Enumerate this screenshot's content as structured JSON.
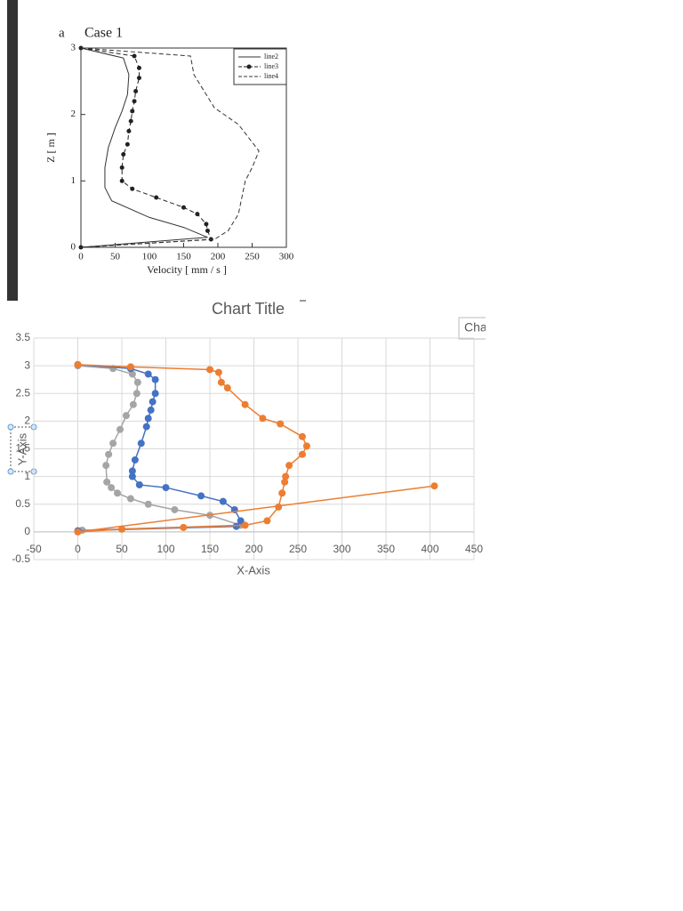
{
  "chart_data": [
    {
      "type": "line",
      "panel_label": "a",
      "title": "Case 1",
      "x_label": "Velocity   [ mm / s ]",
      "y_label": "Z  [ m ]",
      "xlim": [
        0,
        300
      ],
      "xticks": [
        0,
        50,
        100,
        150,
        200,
        250,
        300
      ],
      "ylim": [
        0,
        3
      ],
      "yticks": [
        0,
        1,
        2,
        3
      ],
      "grid": false,
      "legend": "upper right",
      "series": [
        {
          "name": "line2",
          "color": "#333333",
          "line_style": "solid",
          "marker": false,
          "x": [
            0,
            62,
            70,
            68,
            60,
            50,
            40,
            35,
            35,
            45,
            100,
            150,
            185,
            0
          ],
          "y": [
            3,
            2.85,
            2.6,
            2.3,
            2.05,
            1.8,
            1.5,
            1.2,
            0.9,
            0.7,
            0.45,
            0.3,
            0.15,
            0
          ]
        },
        {
          "name": "line3",
          "color": "#222222",
          "line_style": "dashed",
          "marker": true,
          "x": [
            0,
            78,
            85,
            85,
            80,
            78,
            75,
            73,
            70,
            68,
            62,
            60,
            60,
            75,
            110,
            150,
            170,
            183,
            185,
            190,
            0
          ],
          "y": [
            3,
            2.88,
            2.7,
            2.55,
            2.35,
            2.2,
            2.05,
            1.9,
            1.75,
            1.55,
            1.4,
            1.2,
            1.0,
            0.88,
            0.75,
            0.6,
            0.5,
            0.35,
            0.25,
            0.12,
            0
          ]
        },
        {
          "name": "line4",
          "color": "#333333",
          "line_style": "dashed",
          "marker": false,
          "x": [
            0,
            160,
            165,
            195,
            230,
            260,
            250,
            240,
            235,
            230,
            215,
            195,
            0
          ],
          "y": [
            3,
            2.88,
            2.6,
            2.1,
            1.85,
            1.45,
            1.2,
            1.0,
            0.75,
            0.5,
            0.25,
            0.12,
            0
          ]
        }
      ]
    },
    {
      "type": "scatter",
      "title": "Chart Title",
      "x_label": "X-Axis",
      "y_label": "Y-Axis",
      "xlim": [
        -50,
        450
      ],
      "xticks": [
        -50,
        0,
        50,
        100,
        150,
        200,
        250,
        300,
        350,
        400,
        450
      ],
      "ylim": [
        -0.5,
        3.5
      ],
      "yticks": [
        -0.5,
        0,
        0.5,
        1,
        1.5,
        2,
        2.5,
        3,
        3.5
      ],
      "grid": true,
      "series": [
        {
          "color": "#a5a5a5",
          "x": [
            0,
            40,
            62,
            68,
            67,
            63,
            55,
            48,
            40,
            35,
            32,
            33,
            38,
            45,
            60,
            80,
            110,
            150,
            185,
            5
          ],
          "y": [
            3,
            2.95,
            2.85,
            2.7,
            2.5,
            2.3,
            2.1,
            1.85,
            1.6,
            1.4,
            1.2,
            0.9,
            0.8,
            0.7,
            0.6,
            0.5,
            0.4,
            0.3,
            0.12,
            0.03
          ]
        },
        {
          "color": "#4472c4",
          "x": [
            0,
            60,
            80,
            88,
            88,
            85,
            83,
            80,
            78,
            72,
            65,
            62,
            62,
            70,
            100,
            140,
            165,
            178,
            185,
            180,
            0
          ],
          "y": [
            3.02,
            2.95,
            2.85,
            2.75,
            2.5,
            2.35,
            2.2,
            2.05,
            1.9,
            1.6,
            1.3,
            1.1,
            1.0,
            0.85,
            0.8,
            0.65,
            0.55,
            0.4,
            0.2,
            0.1,
            0.02
          ]
        },
        {
          "color": "#ed7d31",
          "x": [
            0,
            60,
            150,
            160,
            163,
            170,
            190,
            210,
            230,
            255,
            260,
            255,
            240,
            236,
            235,
            232,
            228,
            215,
            190,
            120,
            50,
            0,
            405
          ],
          "y": [
            3.02,
            2.98,
            2.93,
            2.88,
            2.7,
            2.6,
            2.3,
            2.05,
            1.95,
            1.72,
            1.55,
            1.4,
            1.2,
            1.0,
            0.9,
            0.7,
            0.45,
            0.2,
            0.12,
            0.08,
            0.05,
            0,
            0.83
          ]
        }
      ]
    }
  ],
  "ui": {
    "button": "Cha"
  }
}
